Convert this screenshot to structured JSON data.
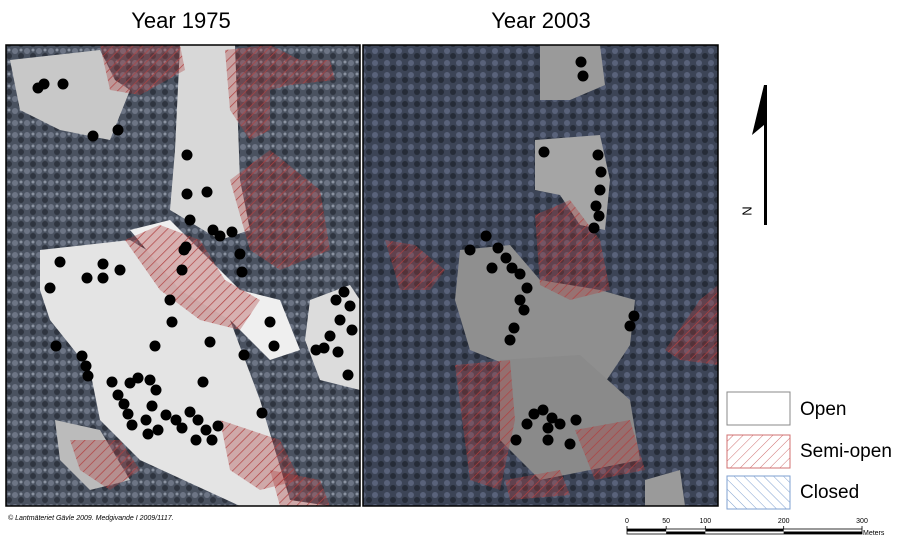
{
  "panels": [
    {
      "title": "Year 1975"
    },
    {
      "title": "Year 2003"
    }
  ],
  "north_arrow": {
    "label": "N"
  },
  "legend": {
    "entries": [
      {
        "label": "Open"
      },
      {
        "label": "Semi-open"
      },
      {
        "label": "Closed"
      }
    ]
  },
  "credit": "© Lantmäteriet Gävle 2009. Medgivande I 2009/1117.",
  "scale_bar": {
    "ticks": [
      0,
      50,
      100,
      200,
      300
    ],
    "unit": "Meters"
  }
}
